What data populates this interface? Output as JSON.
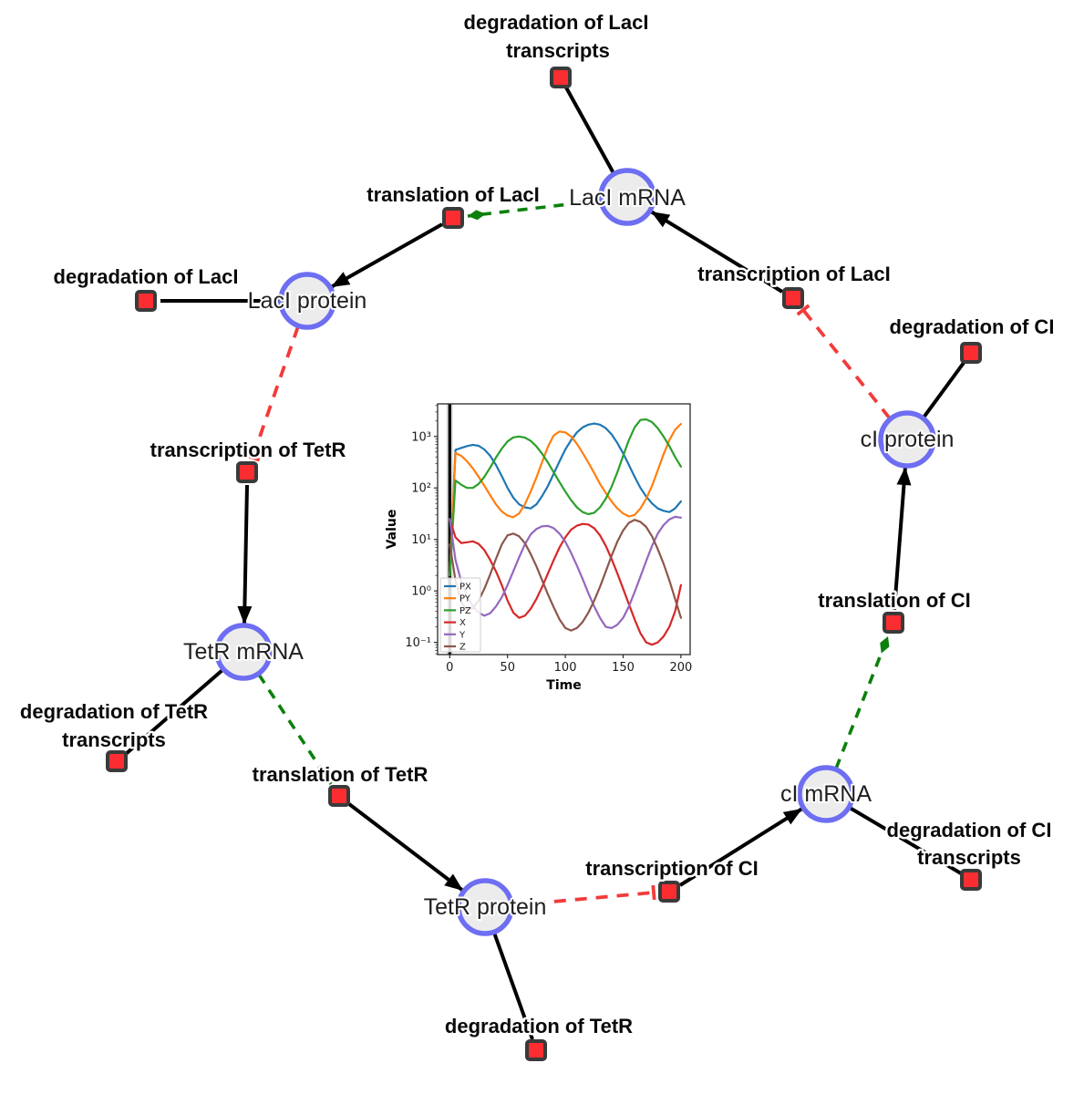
{
  "nodes": {
    "laci_mrna": {
      "label": "LacI mRNA"
    },
    "laci_protein": {
      "label": "LacI protein"
    },
    "tetr_mrna": {
      "label": "TetR mRNA"
    },
    "tetr_protein": {
      "label": "TetR protein"
    },
    "ci_mrna": {
      "label": "cI mRNA"
    },
    "ci_protein": {
      "label": "cI protein"
    }
  },
  "reactions": {
    "deg_laci_tx": {
      "line1": "degradation of LacI",
      "line2": "transcripts"
    },
    "translation_laci": {
      "label": "translation of LacI"
    },
    "transcription_laci": {
      "label": "transcription of LacI"
    },
    "deg_laci": {
      "label": "degradation of LacI"
    },
    "transcription_tetr": {
      "label": "transcription of TetR"
    },
    "deg_tetr_tx": {
      "line1": "degradation of TetR",
      "line2": "transcripts"
    },
    "translation_tetr": {
      "label": "translation of TetR"
    },
    "deg_tetr": {
      "label": "degradation of TetR"
    },
    "transcription_ci": {
      "label": "transcription of CI"
    },
    "deg_ci_tx": {
      "line1": "degradation of CI",
      "line2": "transcripts"
    },
    "translation_ci": {
      "label": "translation of CI"
    },
    "deg_ci": {
      "label": "degradation of CI"
    }
  },
  "connections": [
    {
      "from": "LacI mRNA",
      "to": "degradation of LacI transcripts",
      "type": "consumption"
    },
    {
      "from": "transcription of LacI",
      "to": "LacI mRNA",
      "type": "production"
    },
    {
      "from": "LacI mRNA",
      "to": "translation of LacI",
      "type": "modifier"
    },
    {
      "from": "translation of LacI",
      "to": "LacI protein",
      "type": "production"
    },
    {
      "from": "LacI protein",
      "to": "degradation of LacI",
      "type": "consumption"
    },
    {
      "from": "LacI protein",
      "to": "transcription of TetR",
      "type": "inhibition"
    },
    {
      "from": "transcription of TetR",
      "to": "TetR mRNA",
      "type": "production"
    },
    {
      "from": "TetR mRNA",
      "to": "degradation of TetR transcripts",
      "type": "consumption"
    },
    {
      "from": "TetR mRNA",
      "to": "translation of TetR",
      "type": "modifier"
    },
    {
      "from": "translation of TetR",
      "to": "TetR protein",
      "type": "production"
    },
    {
      "from": "TetR protein",
      "to": "degradation of TetR",
      "type": "consumption"
    },
    {
      "from": "TetR protein",
      "to": "transcription of CI",
      "type": "inhibition"
    },
    {
      "from": "transcription of CI",
      "to": "cI mRNA",
      "type": "production"
    },
    {
      "from": "cI mRNA",
      "to": "degradation of CI transcripts",
      "type": "consumption"
    },
    {
      "from": "cI mRNA",
      "to": "translation of CI",
      "type": "modifier"
    },
    {
      "from": "translation of CI",
      "to": "cI protein",
      "type": "production"
    },
    {
      "from": "cI protein",
      "to": "degradation of CI",
      "type": "consumption"
    },
    {
      "from": "cI protein",
      "to": "transcription of LacI",
      "type": "inhibition"
    }
  ],
  "colors": {
    "species_fill": "#ececec",
    "species_border": "#6e6ef2",
    "reaction_fill": "#fb2d31",
    "reaction_border": "#3a3a3a",
    "production_edge": "#000000",
    "modifier_edge": "#0c800c",
    "inhibition_edge": "#f23b3b"
  },
  "chart_data": {
    "type": "line",
    "title": "",
    "xlabel": "Time",
    "ylabel": "Value",
    "yscale": "log",
    "xlim": [
      -10.5,
      208
    ],
    "ylim": [
      0.058,
      4300
    ],
    "x_ticks": [
      0,
      50,
      100,
      150,
      200
    ],
    "y_ticks": [
      0.1,
      1,
      10,
      100,
      1000
    ],
    "y_tick_labels": [
      "10⁻¹",
      "10⁰",
      "10¹",
      "10²",
      "10³"
    ],
    "legend_position": "lower left",
    "grid": false,
    "event_line_x": 0,
    "x": [
      0,
      5,
      10,
      15,
      20,
      25,
      30,
      35,
      40,
      45,
      50,
      55,
      60,
      65,
      70,
      75,
      80,
      85,
      90,
      95,
      100,
      105,
      110,
      115,
      120,
      125,
      130,
      135,
      140,
      145,
      150,
      155,
      160,
      165,
      170,
      175,
      180,
      185,
      190,
      195,
      200
    ],
    "series": [
      {
        "name": "PX",
        "color": "#1f77b4",
        "values": [
          2,
          550,
          600,
          650,
          690,
          660,
          560,
          420,
          280,
          170,
          100,
          65,
          48,
          42,
          40,
          48,
          70,
          110,
          190,
          330,
          560,
          850,
          1200,
          1500,
          1700,
          1780,
          1700,
          1450,
          1100,
          750,
          470,
          280,
          165,
          100,
          68,
          50,
          40,
          36,
          34,
          40,
          55
        ]
      },
      {
        "name": "PY",
        "color": "#ff7f0e",
        "values": [
          2,
          480,
          420,
          330,
          240,
          165,
          110,
          72,
          48,
          35,
          29,
          27,
          32,
          48,
          85,
          160,
          320,
          640,
          1050,
          1250,
          1200,
          1000,
          720,
          480,
          310,
          195,
          120,
          80,
          55,
          40,
          32,
          28,
          30,
          40,
          62,
          110,
          220,
          450,
          850,
          1350,
          1750
        ]
      },
      {
        "name": "PZ",
        "color": "#2ca02c",
        "values": [
          2,
          140,
          115,
          100,
          100,
          120,
          165,
          250,
          390,
          580,
          800,
          960,
          1000,
          950,
          820,
          640,
          460,
          310,
          200,
          130,
          85,
          58,
          42,
          34,
          31,
          33,
          42,
          62,
          105,
          200,
          420,
          850,
          1500,
          2100,
          2150,
          1900,
          1450,
          1000,
          650,
          400,
          260
        ]
      },
      {
        "name": "X",
        "color": "#d62728",
        "values": [
          25,
          11,
          8.5,
          8.8,
          9.2,
          8.2,
          6.2,
          4,
          2.4,
          1.3,
          0.65,
          0.38,
          0.3,
          0.33,
          0.45,
          0.7,
          1.2,
          2.2,
          4,
          7,
          11,
          15.5,
          18.5,
          20,
          19.5,
          16.5,
          12,
          7.5,
          4.2,
          2.2,
          1.1,
          0.55,
          0.28,
          0.15,
          0.1,
          0.09,
          0.1,
          0.13,
          0.2,
          0.4,
          1.3
        ]
      },
      {
        "name": "Y",
        "color": "#9467bd",
        "values": [
          25,
          4,
          1.5,
          0.8,
          0.5,
          0.38,
          0.33,
          0.37,
          0.5,
          0.75,
          1.3,
          2.4,
          4.5,
          8,
          12.5,
          16,
          18,
          18.3,
          16.5,
          13,
          9,
          5.5,
          3.1,
          1.7,
          0.9,
          0.5,
          0.3,
          0.2,
          0.19,
          0.22,
          0.3,
          0.5,
          0.95,
          1.9,
          3.8,
          7.5,
          13,
          19,
          24.5,
          27.5,
          26.5
        ]
      },
      {
        "name": "Z",
        "color": "#8c564b",
        "values": [
          8,
          1.6,
          0.6,
          0.43,
          0.46,
          0.65,
          1.1,
          2.1,
          4.2,
          8,
          12,
          13,
          11.5,
          8.5,
          5.2,
          3,
          1.6,
          0.85,
          0.48,
          0.28,
          0.19,
          0.17,
          0.19,
          0.25,
          0.38,
          0.65,
          1.2,
          2.4,
          4.8,
          9,
          15,
          21,
          24,
          22,
          17.5,
          11.5,
          6.5,
          3.4,
          1.6,
          0.7,
          0.3
        ]
      }
    ]
  }
}
